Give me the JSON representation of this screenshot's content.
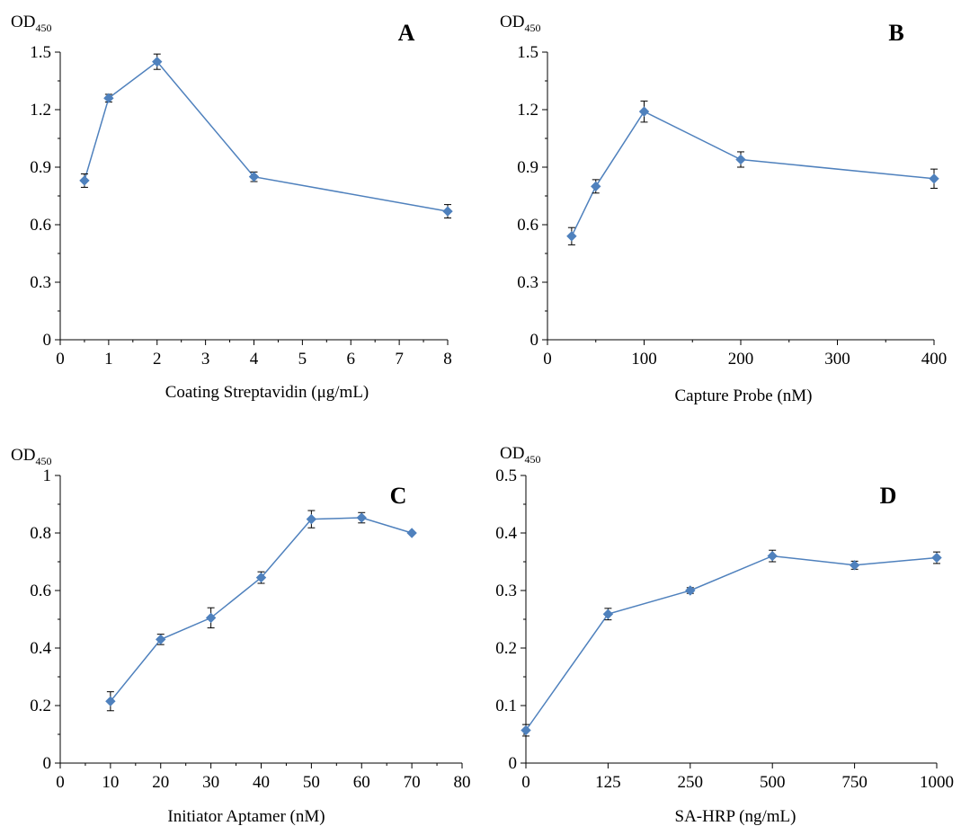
{
  "chart_data": [
    {
      "panel": "A",
      "type": "line",
      "ylabel_main": "OD",
      "ylabel_sub": "450",
      "xlabel": "Coating Streptavidin (μg/mL)",
      "xlim": [
        0,
        8
      ],
      "ylim": [
        0,
        1.5
      ],
      "xticks": [
        0,
        1,
        2,
        3,
        4,
        5,
        6,
        7,
        8
      ],
      "xtick_labels": [
        "0",
        "1",
        "2",
        "3",
        "4",
        "5",
        "6",
        "7",
        "8"
      ],
      "yticks": [
        0,
        0.3,
        0.6,
        0.9,
        1.2,
        1.5
      ],
      "ytick_labels": [
        "0",
        "0.3",
        "0.6",
        "0.9",
        "1.2",
        "1.5"
      ],
      "x": [
        0.5,
        1,
        2,
        4,
        8
      ],
      "y": [
        0.83,
        1.26,
        1.45,
        0.85,
        0.67
      ],
      "err": [
        0.035,
        0.02,
        0.04,
        0.025,
        0.035
      ],
      "color": "#4f81bd"
    },
    {
      "panel": "B",
      "type": "line",
      "ylabel_main": "OD",
      "ylabel_sub": "450",
      "xlabel": "Capture  Probe (nM)",
      "xlim": [
        0,
        400
      ],
      "ylim": [
        0,
        1.5
      ],
      "xticks": [
        0,
        100,
        200,
        300,
        400
      ],
      "xtick_labels": [
        "0",
        "100",
        "200",
        "300",
        "400"
      ],
      "yticks": [
        0,
        0.3,
        0.6,
        0.9,
        1.2,
        1.5
      ],
      "ytick_labels": [
        "0",
        "0.3",
        "0.6",
        "0.9",
        "1.2",
        "1.5"
      ],
      "x": [
        25,
        50,
        100,
        200,
        400
      ],
      "y": [
        0.54,
        0.8,
        1.19,
        0.94,
        0.84
      ],
      "err": [
        0.045,
        0.035,
        0.055,
        0.04,
        0.05
      ],
      "color": "#4f81bd"
    },
    {
      "panel": "C",
      "type": "line",
      "ylabel_main": "OD",
      "ylabel_sub": "450",
      "xlabel": "Initiator Aptamer (nM)",
      "xlim": [
        0,
        80
      ],
      "ylim": [
        0,
        1
      ],
      "xticks": [
        0,
        10,
        20,
        30,
        40,
        50,
        60,
        70,
        80
      ],
      "xtick_labels": [
        "0",
        "10",
        "20",
        "30",
        "40",
        "50",
        "60",
        "70",
        "80"
      ],
      "yticks": [
        0,
        0.2,
        0.4,
        0.6,
        0.8,
        1
      ],
      "ytick_labels": [
        "0",
        "0.2",
        "0.4",
        "0.6",
        "0.8",
        "1"
      ],
      "x": [
        10,
        20,
        30,
        40,
        50,
        60,
        70
      ],
      "y": [
        0.215,
        0.43,
        0.505,
        0.645,
        0.848,
        0.853,
        0.8
      ],
      "err": [
        0.033,
        0.018,
        0.035,
        0.02,
        0.03,
        0.018,
        0.0
      ],
      "color": "#4f81bd"
    },
    {
      "panel": "D",
      "type": "line",
      "ylabel_main": "OD",
      "ylabel_sub": "450",
      "xlabel": "SA-HRP (ng/mL)",
      "x_categorical": true,
      "ylim": [
        0,
        0.5
      ],
      "categories": [
        "0",
        "125",
        "250",
        "500",
        "750",
        "1000"
      ],
      "yticks": [
        0,
        0.1,
        0.2,
        0.3,
        0.4,
        0.5
      ],
      "ytick_labels": [
        "0",
        "0.1",
        "0.2",
        "0.3",
        "0.4",
        "0.5"
      ],
      "y": [
        0.057,
        0.259,
        0.3,
        0.36,
        0.344,
        0.357
      ],
      "err": [
        0.01,
        0.01,
        0.005,
        0.01,
        0.007,
        0.01
      ],
      "color": "#4f81bd"
    }
  ]
}
